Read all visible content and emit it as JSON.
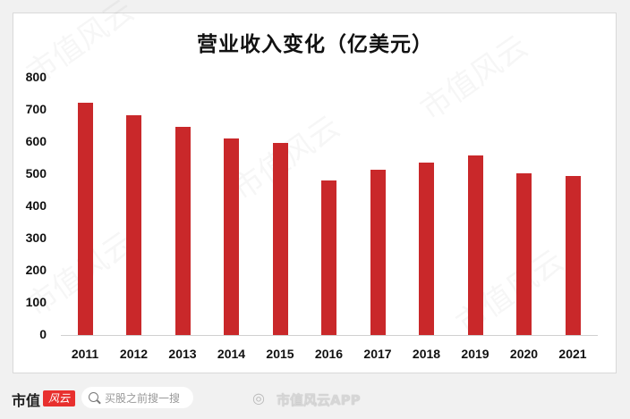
{
  "chart_data": {
    "type": "bar",
    "title": "营业收入变化（亿美元）",
    "xlabel": "",
    "ylabel": "",
    "categories": [
      "2011",
      "2012",
      "2013",
      "2014",
      "2015",
      "2016",
      "2017",
      "2018",
      "2019",
      "2020",
      "2021"
    ],
    "values": [
      722,
      683,
      647,
      611,
      597,
      480,
      514,
      536,
      558,
      503,
      494
    ],
    "ylim": [
      0,
      800
    ],
    "yticks": [
      "0",
      "100",
      "200",
      "300",
      "400",
      "500",
      "600",
      "700",
      "800"
    ],
    "grid": false,
    "legend": null,
    "bar_color": "#c9282a"
  },
  "footer": {
    "brand": "市值",
    "brand_badge": "风云",
    "search_placeholder": "买股之前搜一搜",
    "weibo_label": "市值风云APP"
  },
  "watermark": "市值风云"
}
